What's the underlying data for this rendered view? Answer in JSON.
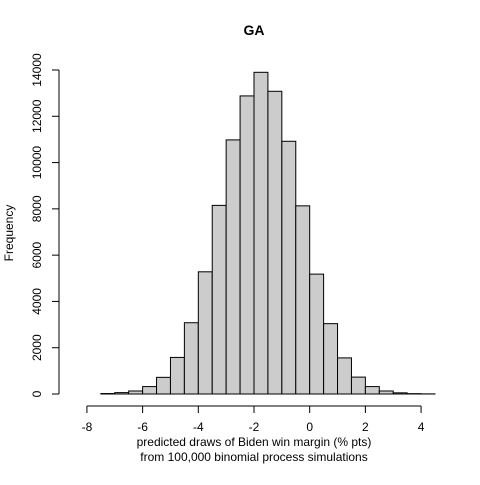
{
  "chart_data": {
    "type": "histogram",
    "title": "GA",
    "xlabel_line1": "predicted draws of Biden win margin (% pts)",
    "xlabel_line2": "from 100,000 binomial process simulations",
    "ylabel": "Frequency",
    "xlim": [
      -8.5,
      4.5
    ],
    "ylim": [
      0,
      14000
    ],
    "bin_width": 0.5,
    "bins": [
      {
        "start": -7.5,
        "count": 20
      },
      {
        "start": -7.0,
        "count": 60
      },
      {
        "start": -6.5,
        "count": 130
      },
      {
        "start": -6.0,
        "count": 320
      },
      {
        "start": -5.5,
        "count": 720
      },
      {
        "start": -5.0,
        "count": 1580
      },
      {
        "start": -4.5,
        "count": 3080
      },
      {
        "start": -4.0,
        "count": 5280
      },
      {
        "start": -3.5,
        "count": 8150
      },
      {
        "start": -3.0,
        "count": 10980
      },
      {
        "start": -2.5,
        "count": 12880
      },
      {
        "start": -2.0,
        "count": 13900
      },
      {
        "start": -1.5,
        "count": 13080
      },
      {
        "start": -1.0,
        "count": 10920
      },
      {
        "start": -0.5,
        "count": 8130
      },
      {
        "start": 0.0,
        "count": 5180
      },
      {
        "start": 0.5,
        "count": 3040
      },
      {
        "start": 1.0,
        "count": 1560
      },
      {
        "start": 1.5,
        "count": 730
      },
      {
        "start": 2.0,
        "count": 320
      },
      {
        "start": 2.5,
        "count": 130
      },
      {
        "start": 3.0,
        "count": 50
      },
      {
        "start": 3.5,
        "count": 15
      },
      {
        "start": 4.0,
        "count": 5
      }
    ],
    "x_ticks": [
      {
        "value": -8,
        "label": "-8"
      },
      {
        "value": -6,
        "label": "-6"
      },
      {
        "value": -4,
        "label": "-4"
      },
      {
        "value": -2,
        "label": "-2"
      },
      {
        "value": 0,
        "label": "0"
      },
      {
        "value": 2,
        "label": "2"
      },
      {
        "value": 4,
        "label": "4"
      }
    ],
    "y_ticks": [
      {
        "value": 0,
        "label": "0"
      },
      {
        "value": 2000,
        "label": "2000"
      },
      {
        "value": 4000,
        "label": "4000"
      },
      {
        "value": 6000,
        "label": "6000"
      },
      {
        "value": 8000,
        "label": "8000"
      },
      {
        "value": 10000,
        "label": "10000"
      },
      {
        "value": 12000,
        "label": "12000"
      },
      {
        "value": 14000,
        "label": "14000"
      }
    ],
    "bar_fill": "#cccccc",
    "bar_stroke": "#000000",
    "grid": false
  }
}
